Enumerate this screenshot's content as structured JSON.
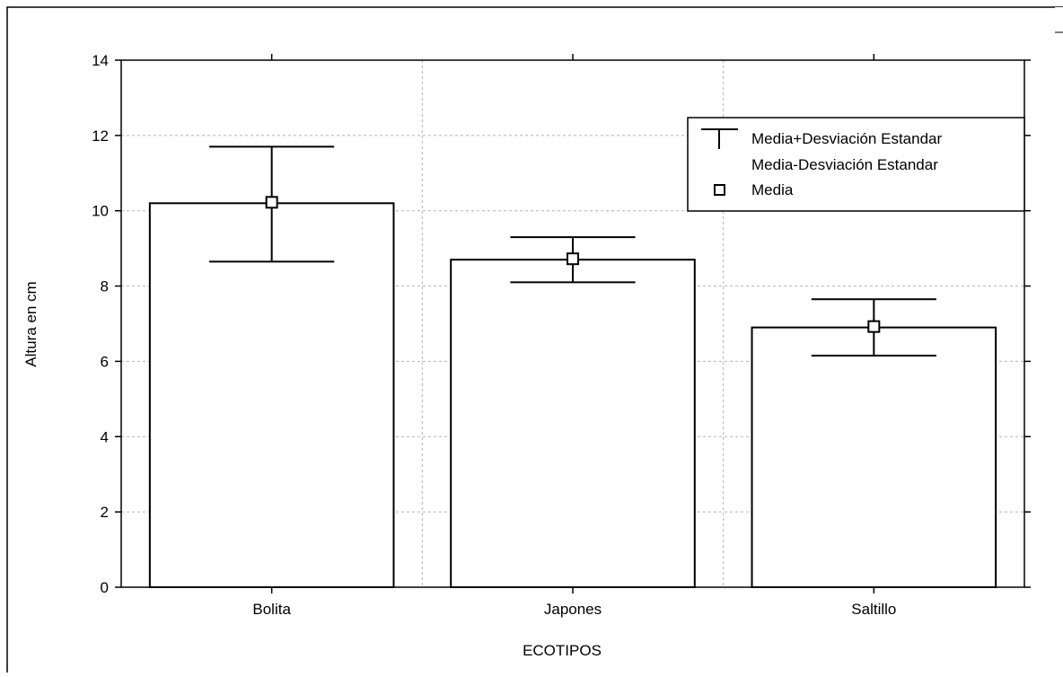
{
  "chart_data": {
    "type": "bar",
    "categories": [
      "Bolita",
      "Japones",
      "Saltillo"
    ],
    "values": [
      10.2,
      8.7,
      6.9
    ],
    "error_upper": [
      11.7,
      9.3,
      7.65
    ],
    "error_lower": [
      8.65,
      8.1,
      6.15
    ],
    "xlabel": "ECOTIPOS",
    "ylabel": "Altura en cm",
    "ylim": [
      0,
      14
    ],
    "yticks": [
      "0",
      "2",
      "4",
      "6",
      "8",
      "10",
      "12",
      "14"
    ],
    "grid": true,
    "legend": {
      "placement": "top-right",
      "items": [
        "Media+Desviación Estandar",
        "Media-Desviación Estandar",
        "Media"
      ]
    }
  }
}
